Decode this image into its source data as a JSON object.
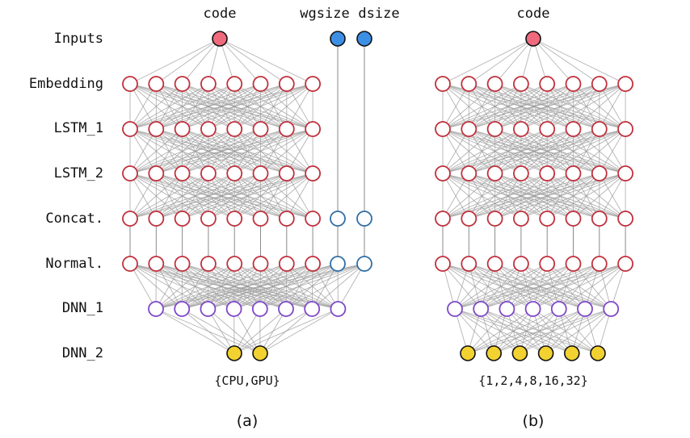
{
  "layer_labels": [
    "Inputs",
    "Embedding",
    "LSTM_1",
    "LSTM_2",
    "Concat.",
    "Normal.",
    "DNN_1",
    "DNN_2"
  ],
  "panel_a": {
    "input_labels": [
      "code",
      "wgsize",
      "dsize"
    ],
    "output_label": "{CPU,GPU}",
    "caption": "(a)"
  },
  "panel_b": {
    "input_labels": [
      "code"
    ],
    "output_label": "{1,2,4,8,16,32}",
    "caption": "(b)"
  },
  "colors": {
    "code_input": "#ef6a7c",
    "aux_input": "#3d8fe6",
    "recurrent_layer": "#c0303c",
    "aux_node": "#2f6fa6",
    "dense_layer": "#8048c8",
    "output_node": "#f2d230"
  }
}
